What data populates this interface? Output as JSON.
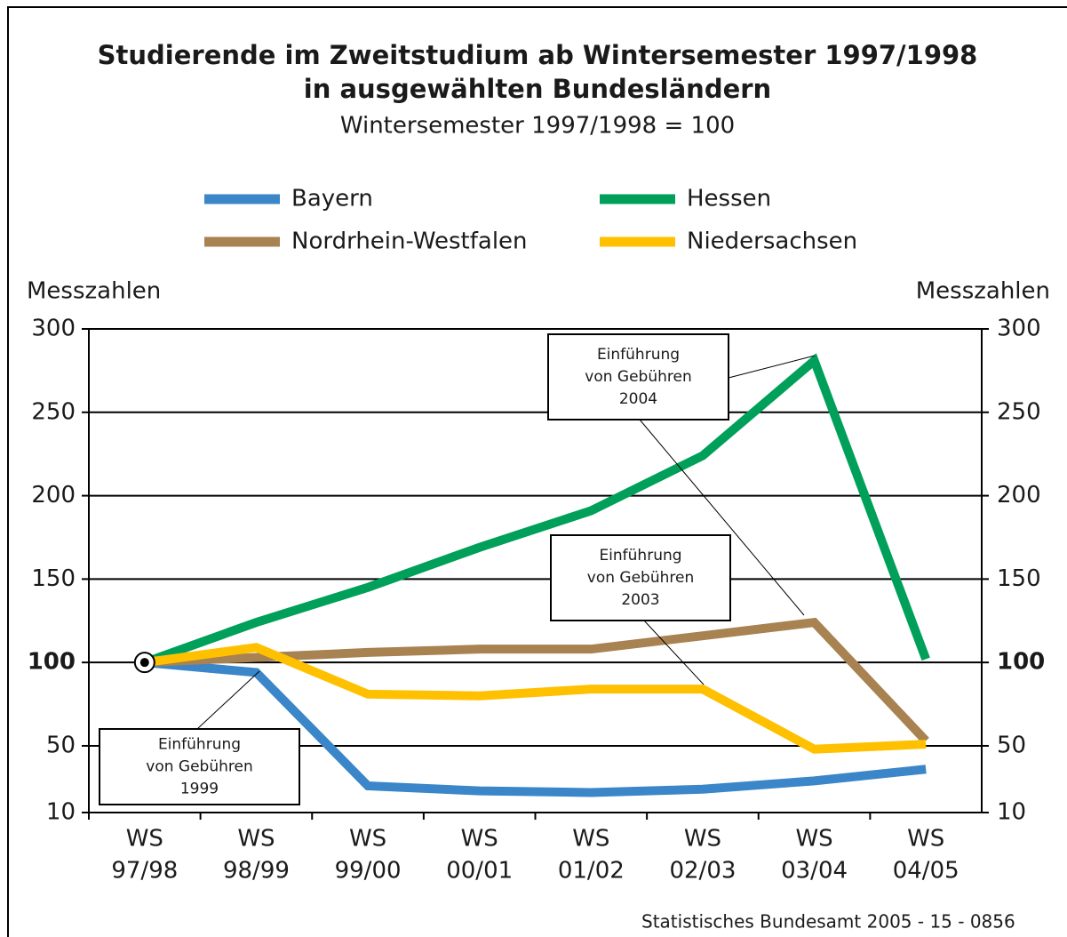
{
  "chart_data": {
    "type": "line",
    "title": [
      "Studierende im Zweitstudium ab Wintersemester 1997/1998",
      "in ausgewählten Bundesländern"
    ],
    "subtitle": "Wintersemester 1997/1998 = 100",
    "ylabel": "Messzahlen",
    "y2label": "Messzahlen",
    "categories": [
      [
        "WS",
        "97/98"
      ],
      [
        "WS",
        "98/99"
      ],
      [
        "WS",
        "99/00"
      ],
      [
        "WS",
        "00/01"
      ],
      [
        "WS",
        "01/02"
      ],
      [
        "WS",
        "02/03"
      ],
      [
        "WS",
        "03/04"
      ],
      [
        "WS",
        "04/05"
      ]
    ],
    "series": [
      {
        "name": "Bayern",
        "color": "#3a86c8",
        "values": [
          100,
          94,
          26,
          23,
          22,
          24,
          29,
          36
        ]
      },
      {
        "name": "Hessen",
        "color": "#00a05a",
        "values": [
          100,
          124,
          145,
          169,
          191,
          224,
          281,
          102
        ]
      },
      {
        "name": "Nordrhein-Westfalen",
        "color": "#a88250",
        "values": [
          100,
          103,
          106,
          108,
          108,
          116,
          124,
          53
        ]
      },
      {
        "name": "Niedersachsen",
        "color": "#ffc000",
        "values": [
          100,
          109,
          81,
          80,
          84,
          84,
          48,
          51
        ]
      }
    ],
    "ylim": [
      10,
      300
    ],
    "yticks": [
      10,
      50,
      100,
      150,
      200,
      250,
      300
    ],
    "y2lim": [
      10,
      300
    ],
    "y2ticks": [
      10,
      50,
      100,
      150,
      200,
      250,
      300
    ],
    "grid": true,
    "annotations": [
      [
        "Einführung",
        "von Gebühren",
        "2004"
      ],
      [
        "Einführung",
        "von Gebühren",
        "2003"
      ],
      [
        "Einführung",
        "von Gebühren",
        "1999"
      ]
    ],
    "source": "Statistisches Bundesamt 2005 - 15 - 0856"
  }
}
